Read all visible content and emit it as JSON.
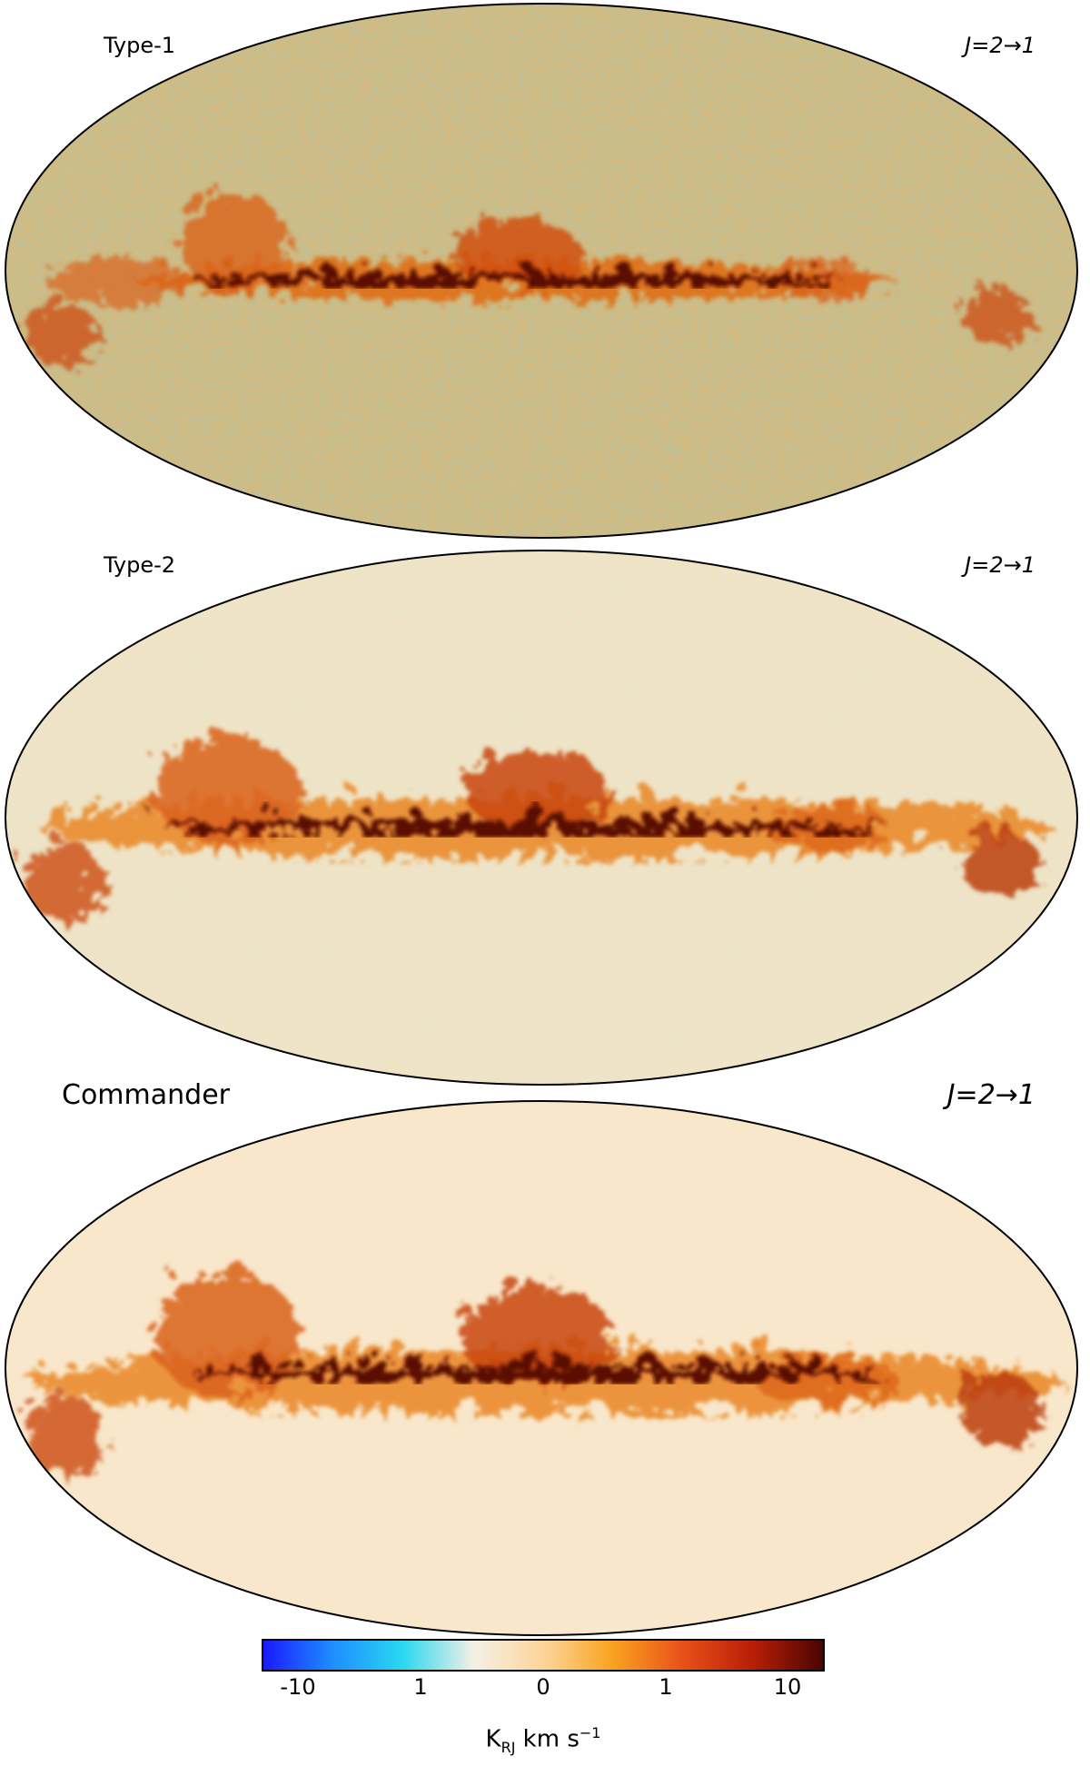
{
  "panels": [
    {
      "label": "Type-1",
      "transition": "J=2→1"
    },
    {
      "label": "Type-2",
      "transition": "J=2→1"
    },
    {
      "label": "Commander",
      "transition": "J=2→1"
    }
  ],
  "colorbar": {
    "ticks": [
      "-10",
      "1",
      "0",
      "1",
      "10"
    ],
    "units_main": "K",
    "units_sub": "RJ",
    "units_rest": " km s",
    "units_exp": "−1",
    "colors": [
      "#1a1aff",
      "#1e8fff",
      "#2ad8f0",
      "#f5f0e6",
      "#fdd59a",
      "#f9a21e",
      "#e8501a",
      "#b81e06",
      "#4a0500"
    ]
  }
}
